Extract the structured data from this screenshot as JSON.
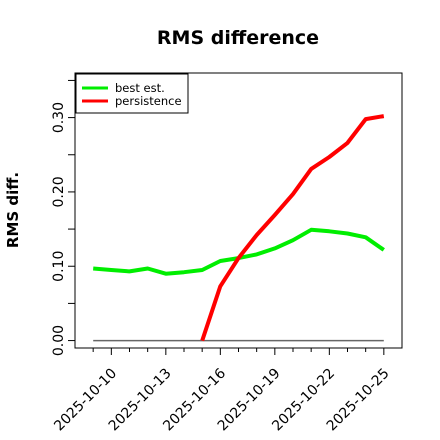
{
  "chart_data": {
    "type": "line",
    "title": "RMS difference",
    "xlabel": "",
    "ylabel": "RMS diff.",
    "x_tick_labels": [
      "2025-10-10",
      "2025-10-13",
      "2025-10-16",
      "2025-10-19",
      "2025-10-22",
      "2025-10-25"
    ],
    "y_tick_labels": [
      "0.00",
      "0.10",
      "0.20",
      "0.30"
    ],
    "xlim": [
      "2025-10-08",
      "2025-10-26"
    ],
    "ylim": [
      -0.01,
      0.36
    ],
    "grid": false,
    "legend": {
      "placement": "top-left"
    },
    "series": [
      {
        "name": "best est.",
        "color": "#00ee00",
        "x": [
          "2025-10-09",
          "2025-10-10",
          "2025-10-11",
          "2025-10-12",
          "2025-10-13",
          "2025-10-14",
          "2025-10-15",
          "2025-10-16",
          "2025-10-17",
          "2025-10-18",
          "2025-10-19",
          "2025-10-20",
          "2025-10-21",
          "2025-10-22",
          "2025-10-23",
          "2025-10-24",
          "2025-10-25"
        ],
        "values": [
          0.097,
          0.095,
          0.093,
          0.097,
          0.09,
          0.092,
          0.095,
          0.107,
          0.111,
          0.116,
          0.124,
          0.135,
          0.149,
          0.147,
          0.144,
          0.139,
          0.122
        ]
      },
      {
        "name": "persistence",
        "color": "#ff0000",
        "x": [
          "2025-10-15",
          "2025-10-16",
          "2025-10-17",
          "2025-10-18",
          "2025-10-19",
          "2025-10-20",
          "2025-10-21",
          "2025-10-22",
          "2025-10-23",
          "2025-10-24",
          "2025-10-25"
        ],
        "values": [
          0.0,
          0.073,
          0.111,
          0.142,
          0.169,
          0.197,
          0.231,
          0.247,
          0.266,
          0.298,
          0.302
        ]
      },
      {
        "name": "",
        "color": "#666666",
        "x": [
          "2025-10-09",
          "2025-10-25"
        ],
        "values": [
          0.0,
          0.0
        ]
      }
    ]
  }
}
